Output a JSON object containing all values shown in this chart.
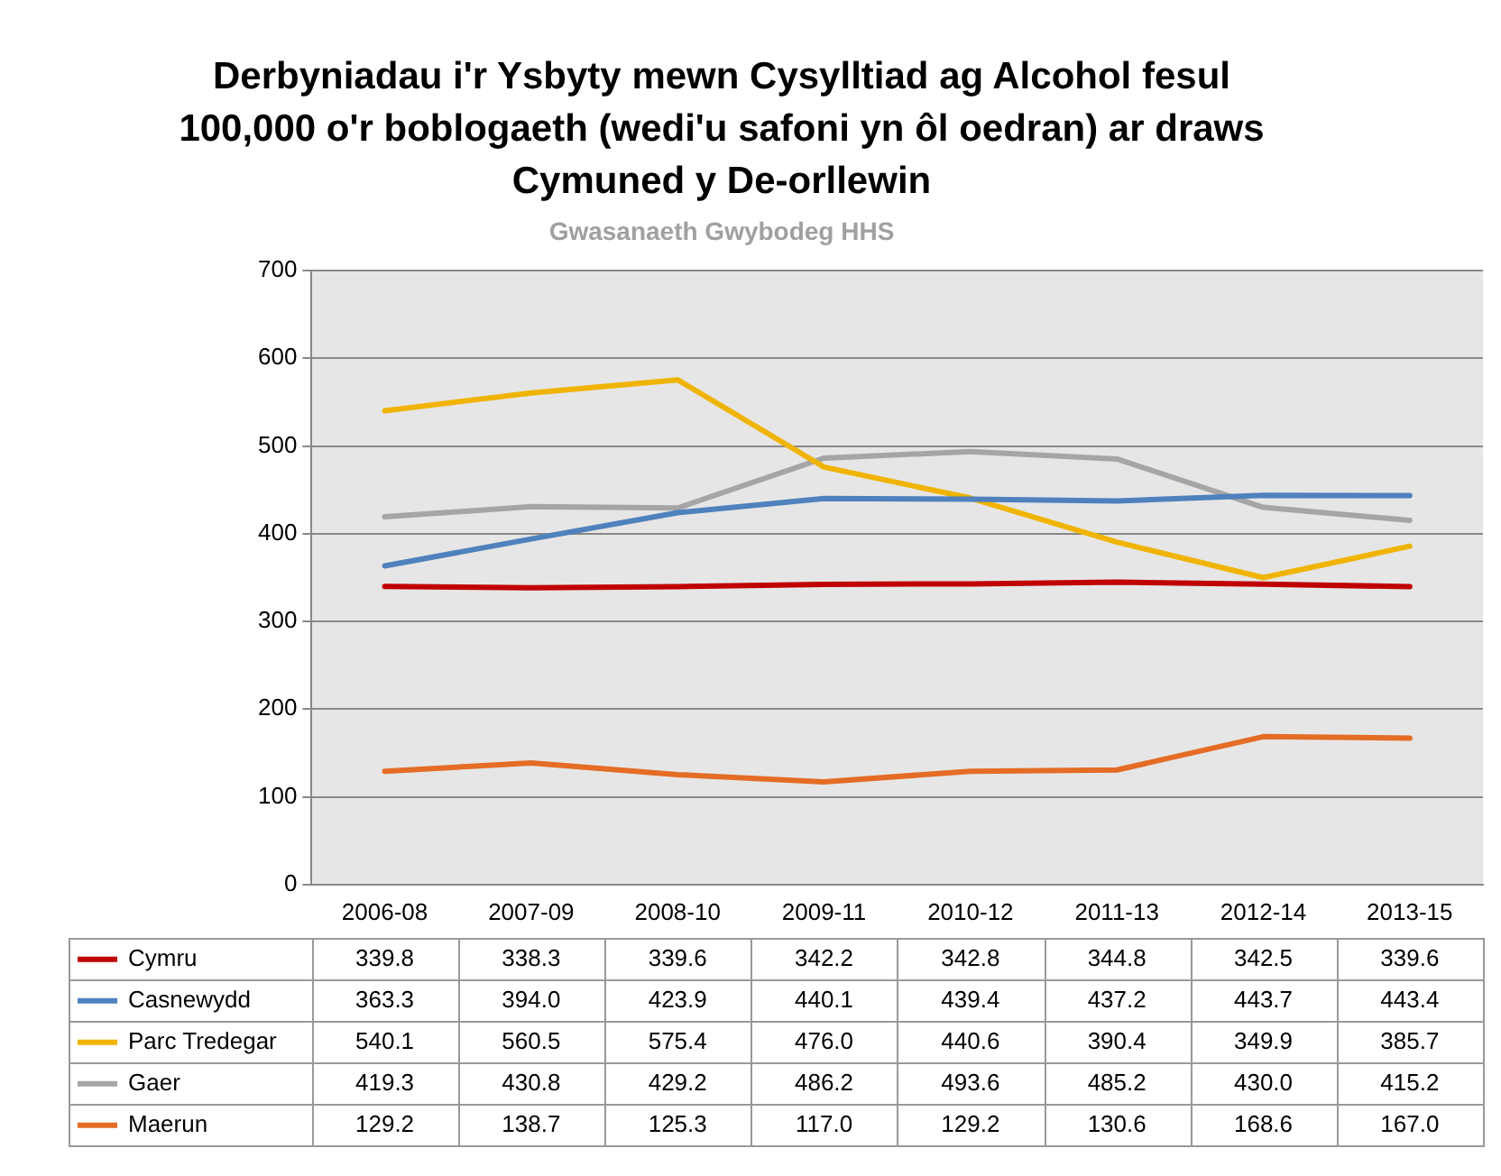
{
  "chart_data": {
    "type": "line",
    "title": "Derbyniadau i'r Ysbyty mewn Cysylltiad ag Alcohol fesul 100,000 o'r boblogaeth (wedi'u safoni yn ôl oedran) ar draws Cymuned y De-orllewin",
    "subtitle": "Gwasanaeth Gwybodeg HHS",
    "categories": [
      "2006-08",
      "2007-09",
      "2008-10",
      "2009-11",
      "2010-12",
      "2011-13",
      "2012-14",
      "2013-15"
    ],
    "series": [
      {
        "name": "Cymru",
        "color": "#c00000",
        "values": [
          339.8,
          338.3,
          339.6,
          342.2,
          342.8,
          344.8,
          342.5,
          339.6
        ],
        "value_labels": [
          "339.8",
          "338.3",
          "339.6",
          "342.2",
          "342.8",
          "344.8",
          "342.5",
          "339.6"
        ]
      },
      {
        "name": "Casnewydd",
        "color": "#4f81bd",
        "values": [
          363.3,
          394.0,
          423.9,
          440.1,
          439.4,
          437.2,
          443.7,
          443.4
        ],
        "value_labels": [
          "363.3",
          "394.0",
          "423.9",
          "440.1",
          "439.4",
          "437.2",
          "443.7",
          "443.4"
        ]
      },
      {
        "name": "Parc Tredegar",
        "color": "#f0b400",
        "values": [
          540.1,
          560.5,
          575.4,
          476.0,
          440.6,
          390.4,
          349.9,
          385.7
        ],
        "value_labels": [
          "540.1",
          "560.5",
          "575.4",
          "476.0",
          "440.6",
          "390.4",
          "349.9",
          "385.7"
        ]
      },
      {
        "name": "Gaer",
        "color": "#a5a5a5",
        "values": [
          419.3,
          430.8,
          429.2,
          486.2,
          493.6,
          485.2,
          430.0,
          415.2
        ],
        "value_labels": [
          "419.3",
          "430.8",
          "429.2",
          "486.2",
          "493.6",
          "485.2",
          "430.0",
          "415.2"
        ]
      },
      {
        "name": "Maerun",
        "color": "#e46c25",
        "values": [
          129.2,
          138.7,
          125.3,
          117.0,
          129.2,
          130.6,
          168.6,
          167.0
        ],
        "value_labels": [
          "129.2",
          "138.7",
          "125.3",
          "117.0",
          "129.2",
          "130.6",
          "168.6",
          "167.0"
        ]
      }
    ],
    "ylim": [
      0,
      700
    ],
    "yticks": [
      0,
      100,
      200,
      300,
      400,
      500,
      600,
      700
    ],
    "grid": "y",
    "legend": "bottom left",
    "marker": "none",
    "line_style": "solid"
  }
}
